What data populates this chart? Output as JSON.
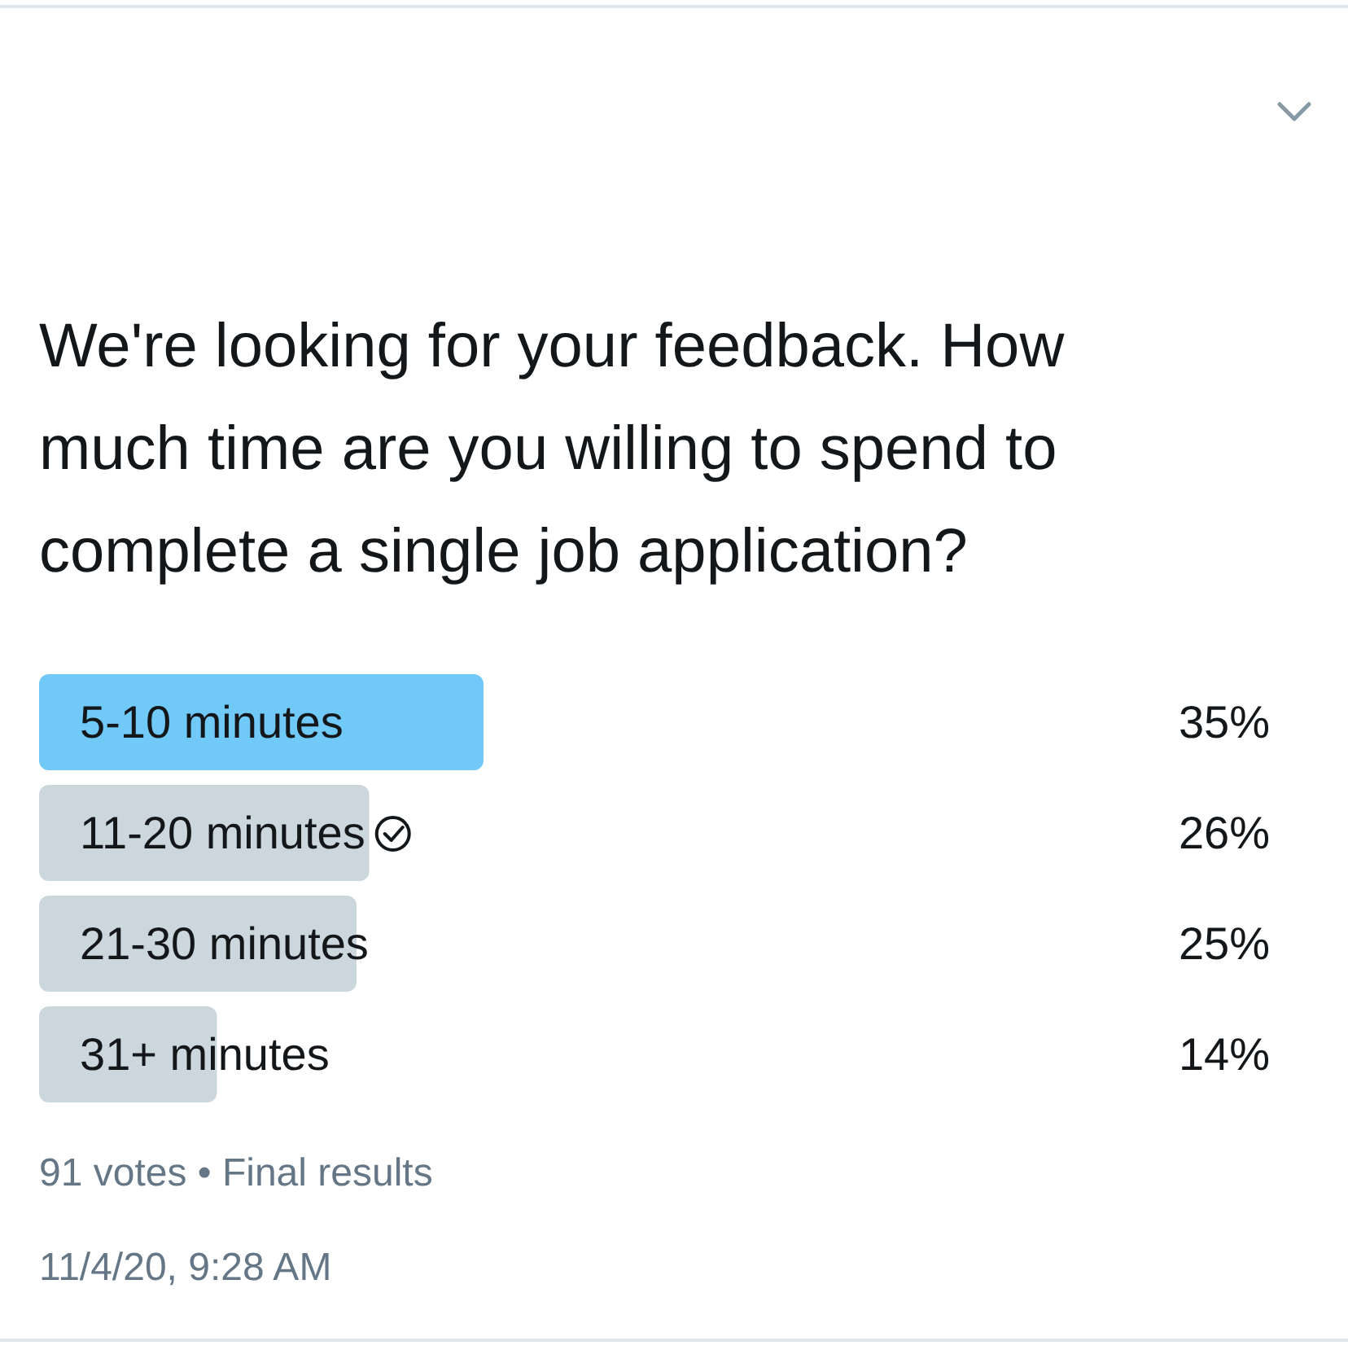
{
  "chart_data": {
    "type": "bar",
    "orientation": "horizontal",
    "title": "We're looking for your feedback. How much time are you willing to spend to complete a single job application?",
    "categories": [
      "5-10 minutes",
      "11-20 minutes",
      "21-30 minutes",
      "31+ minutes"
    ],
    "values": [
      35,
      26,
      25,
      14
    ],
    "colors": [
      "#71c9f8",
      "#ccd6dd",
      "#ccd6dd",
      "#ccd6dd"
    ],
    "value_labels": [
      "35%",
      "26%",
      "25%",
      "14%"
    ],
    "annotations": [
      "91 votes • Final results",
      "11/4/20, 9:28 AM"
    ]
  }
}
